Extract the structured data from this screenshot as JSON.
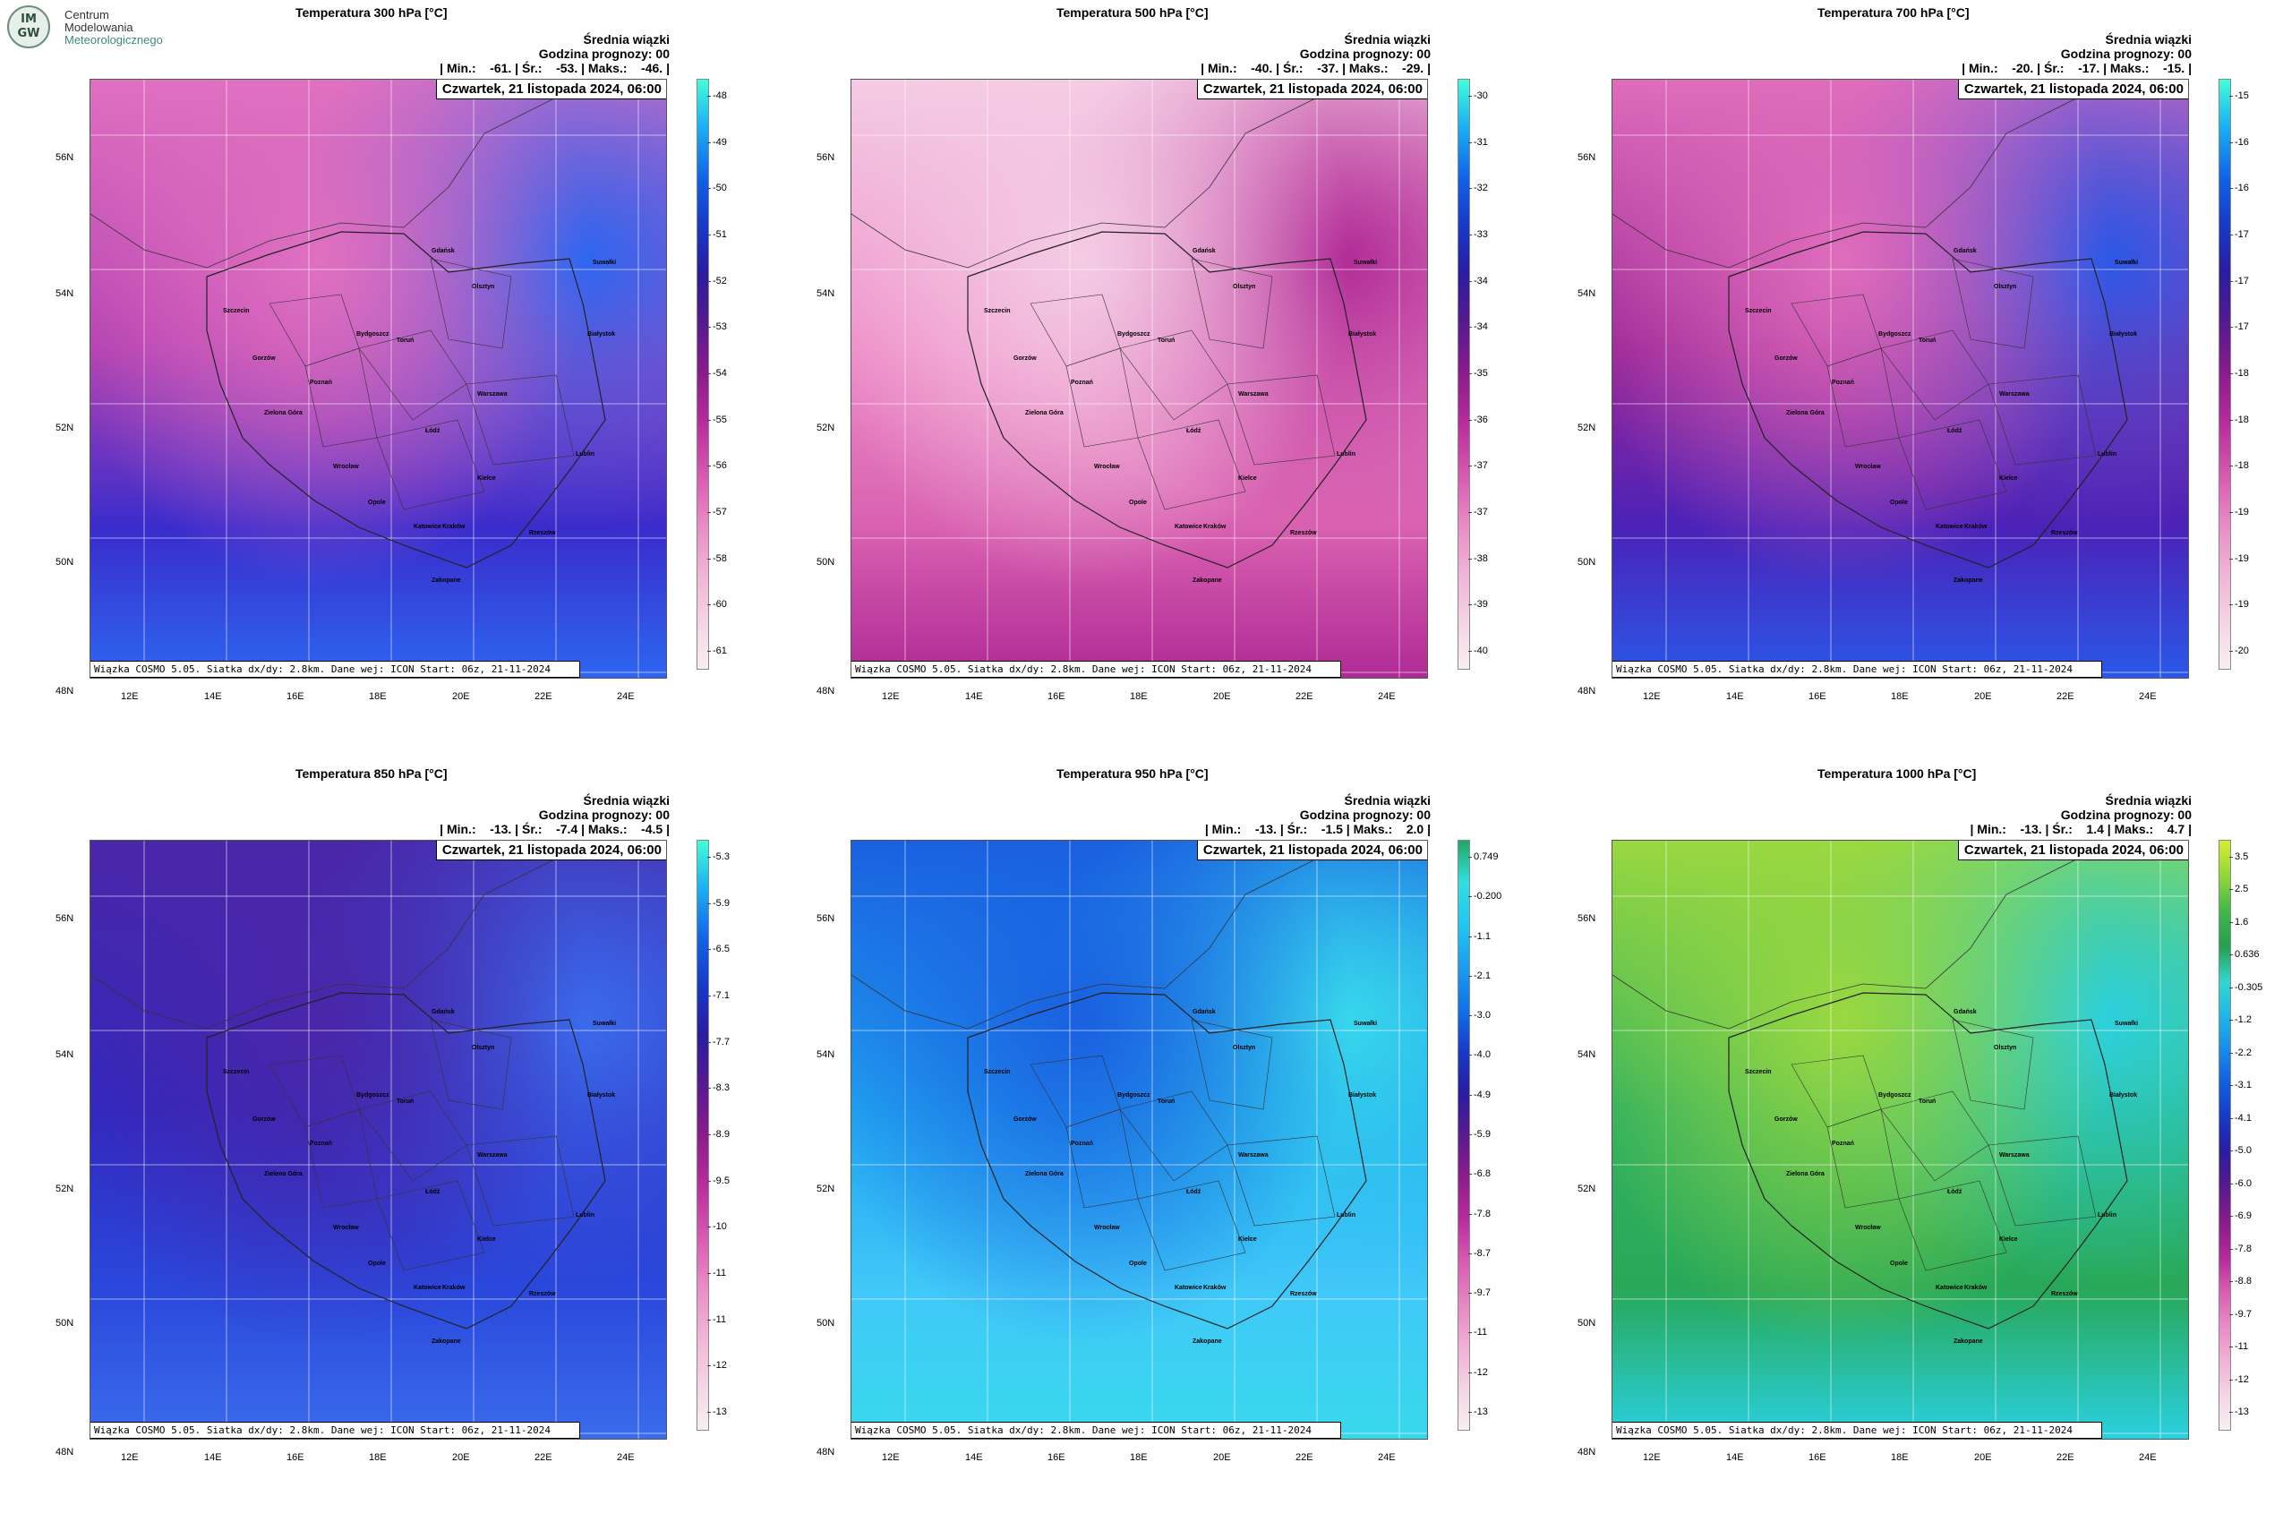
{
  "logo": {
    "badge_line1": "IM",
    "badge_line2": "GW",
    "line1": "Centrum",
    "line2": "Modelowania",
    "line3": "Meteorologicznego"
  },
  "panels": [
    {
      "title": "Temperatura 300 hPa [°C]",
      "info1": "Średnia wiązki",
      "info2": "Godzina prognozy: 00",
      "stats": "| Min.:    -61. | Śr.:    -53. | Maks.:    -46. |",
      "date": "Czwartek, 21 listopada 2024, 06:00",
      "footer": "Wiązka COSMO 5.05. Siatka dx/dy: 2.8km. Dane wej: ICON Start: 06z, 21-11-2024",
      "colorbar_ticks": [
        "-48",
        "-49",
        "-50",
        "-51",
        "-52",
        "-53",
        "-54",
        "-55",
        "-56",
        "-57",
        "-58",
        "-60",
        "-61"
      ],
      "colorbar_colors": [
        "#40ffd8",
        "#1ab0f5",
        "#1060e8",
        "#1838c8",
        "#2a1ca0",
        "#5a1a90",
        "#8c1b8c",
        "#b82a9c",
        "#d858b0",
        "#e888c4",
        "#f0b0d4",
        "#f4d4e4",
        "#f8eef2"
      ],
      "fill_colors": [
        "#e070c0",
        "#b040b0",
        "#3a2ccc",
        "#2c66f0"
      ]
    },
    {
      "title": "Temperatura 500 hPa [°C]",
      "info1": "Średnia wiązki",
      "info2": "Godzina prognozy: 00",
      "stats": "| Min.:    -40. | Śr.:    -37. | Maks.:    -29. |",
      "date": "Czwartek, 21 listopada 2024, 06:00",
      "footer": "Wiązka COSMO 5.05. Siatka dx/dy: 2.8km. Dane wej: ICON Start: 06z, 21-11-2024",
      "colorbar_ticks": [
        "-30",
        "-31",
        "-32",
        "-33",
        "-34",
        "-34",
        "-35",
        "-36",
        "-37",
        "-37",
        "-38",
        "-39",
        "-40"
      ],
      "colorbar_colors": [
        "#40ffd8",
        "#1ab0f5",
        "#1060e8",
        "#1838c8",
        "#2a1ca0",
        "#5a1a90",
        "#8c1b8c",
        "#b82a9c",
        "#d858b0",
        "#e888c4",
        "#f0b0d4",
        "#f4d4e4",
        "#f8eef2"
      ],
      "fill_colors": [
        "#f4cce4",
        "#ee8cc8",
        "#d860b0",
        "#b02a96"
      ]
    },
    {
      "title": "Temperatura 700 hPa [°C]",
      "info1": "Średnia wiązki",
      "info2": "Godzina prognozy: 00",
      "stats": "| Min.:    -20. | Śr.:    -17. | Maks.:    -15. |",
      "date": "Czwartek, 21 listopada 2024, 06:00",
      "footer": "Wiązka COSMO 5.05. Siatka dx/dy: 2.8km. Dane wej: ICON Start: 06z, 21-11-2024",
      "colorbar_ticks": [
        "-15",
        "-16",
        "-16",
        "-17",
        "-17",
        "-17",
        "-18",
        "-18",
        "-18",
        "-19",
        "-19",
        "-19",
        "-20"
      ],
      "colorbar_colors": [
        "#40ffd8",
        "#1ab0f5",
        "#1060e8",
        "#1838c8",
        "#2a1ca0",
        "#5a1a90",
        "#8c1b8c",
        "#b82a9c",
        "#d858b0",
        "#e888c4",
        "#f0b0d4",
        "#f4d4e4",
        "#f8eef2"
      ],
      "fill_colors": [
        "#e06cbc",
        "#9a2696",
        "#4a22b8",
        "#2a58e8"
      ]
    },
    {
      "title": "Temperatura 850 hPa [°C]",
      "info1": "Średnia wiązki",
      "info2": "Godzina prognozy: 00",
      "stats": "| Min.:    -13. | Śr.:    -7.4 | Maks.:    -4.5 |",
      "date": "Czwartek, 21 listopada 2024, 06:00",
      "footer": "Wiązka COSMO 5.05. Siatka dx/dy: 2.8km. Dane wej: ICON Start: 06z, 21-11-2024",
      "colorbar_ticks": [
        "-5.3",
        "-5.9",
        "-6.5",
        "-7.1",
        "-7.7",
        "-8.3",
        "-8.9",
        "-9.5",
        "-10",
        "-11",
        "-11",
        "-12",
        "-13"
      ],
      "colorbar_colors": [
        "#40ffd8",
        "#1ab0f5",
        "#1060e8",
        "#1838c8",
        "#2a1ca0",
        "#5a1a90",
        "#8c1b8c",
        "#b82a9c",
        "#d858b0",
        "#e888c4",
        "#f0b0d4",
        "#f4d4e4",
        "#f8eef2"
      ],
      "fill_colors": [
        "#4a26a8",
        "#3028c0",
        "#2a48dc",
        "#3a6cec"
      ]
    },
    {
      "title": "Temperatura 950 hPa [°C]",
      "info1": "Średnia wiązki",
      "info2": "Godzina prognozy: 00",
      "stats": "| Min.:    -13. | Śr.:    -1.5 | Maks.:    2.0 |",
      "date": "Czwartek, 21 listopada 2024, 06:00",
      "footer": "Wiązka COSMO 5.05. Siatka dx/dy: 2.8km. Dane wej: ICON Start: 06z, 21-11-2024",
      "colorbar_ticks": [
        "0.749",
        "-0.200",
        "-1.1",
        "-2.1",
        "-3.0",
        "-4.0",
        "-4.9",
        "-5.9",
        "-6.8",
        "-7.8",
        "-8.7",
        "-9.7",
        "-11",
        "-12",
        "-13"
      ],
      "colorbar_colors": [
        "#20a860",
        "#30e0e0",
        "#20c8f4",
        "#1aa0f0",
        "#1070e8",
        "#1838c8",
        "#2a1ca0",
        "#5a1a90",
        "#8c1b8c",
        "#b82a9c",
        "#d858b0",
        "#e888c4",
        "#f0b0d4",
        "#f4d4e4",
        "#f8eef2"
      ],
      "fill_colors": [
        "#1a60e0",
        "#20a4f0",
        "#40c8f8",
        "#38d8ec"
      ]
    },
    {
      "title": "Temperatura 1000 hPa [°C]",
      "info1": "Średnia wiązki",
      "info2": "Godzina prognozy: 00",
      "stats": "| Min.:    -13. | Śr.:    1.4 | Maks.:    4.7 |",
      "date": "Czwartek, 21 listopada 2024, 06:00",
      "footer": "Wiązka COSMO 5.05. Siatka dx/dy: 2.8km. Dane wej: ICON Start: 06z, 21-11-2024",
      "colorbar_ticks": [
        "3.5",
        "2.5",
        "1.6",
        "0.636",
        "-0.305",
        "-1.2",
        "-2.2",
        "-3.1",
        "-4.1",
        "-5.0",
        "-6.0",
        "-6.9",
        "-7.8",
        "-8.8",
        "-9.7",
        "-11",
        "-12",
        "-13"
      ],
      "colorbar_colors": [
        "#d8ec30",
        "#90d838",
        "#40b848",
        "#24a050",
        "#30d8d0",
        "#20bce8",
        "#1890ec",
        "#1060e0",
        "#1838c8",
        "#2a1ca0",
        "#5a1a90",
        "#8c1b8c",
        "#b82a9c",
        "#d858b0",
        "#e888c4",
        "#f0b0d4",
        "#f4d4e4",
        "#f8eef2"
      ],
      "fill_colors": [
        "#9ad840",
        "#30b060",
        "#28a858",
        "#2ad0e0"
      ]
    }
  ],
  "lat_labels": [
    "56N",
    "54N",
    "52N",
    "50N",
    "48N"
  ],
  "lon_labels": [
    "12E",
    "14E",
    "16E",
    "18E",
    "20E",
    "22E",
    "24E"
  ],
  "cities": [
    "Gdańsk",
    "Olsztyn",
    "Suwałki",
    "Szczecin",
    "Bydgoszcz",
    "Toruń",
    "Białystok",
    "Gorzów",
    "Poznań",
    "Warszawa",
    "Zielona Góra",
    "Łódź",
    "Lublin",
    "Wrocław",
    "Opole",
    "Kielce",
    "Katowice",
    "Kraków",
    "Rzeszów",
    "Zakopane"
  ]
}
